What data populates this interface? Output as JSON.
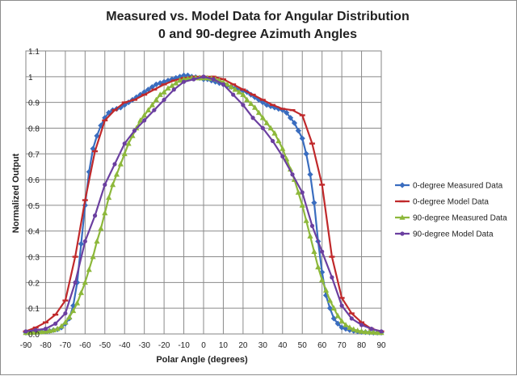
{
  "chart_data": {
    "type": "line",
    "title": "Measured vs. Model Data for Angular Distribution",
    "subtitle": "0 and 90-degree Azimuth Angles",
    "xlabel": "Polar Angle (degrees)",
    "ylabel": "Normalized Output",
    "xlim": [
      -90,
      90
    ],
    "ylim": [
      0,
      1.1
    ],
    "x_ticks": [
      "-90",
      "-80",
      "-70",
      "-60",
      "-50",
      "-40",
      "-30",
      "-20",
      "-10",
      "0",
      "10",
      "20",
      "30",
      "40",
      "50",
      "60",
      "70",
      "80",
      "90"
    ],
    "y_ticks": [
      "0.0",
      "0.1",
      "0.2",
      "0.3",
      "0.4",
      "0.5",
      "0.6",
      "0.7",
      "0.8",
      "0.9",
      "1",
      "1.1"
    ],
    "grid": true,
    "legend_position": "right",
    "series": [
      {
        "name": "0-degree Measured Data",
        "color": "#3A6DBF",
        "marker": "diamond",
        "x": [
          -90,
          -88,
          -86,
          -84,
          -82,
          -80,
          -78,
          -76,
          -74,
          -72,
          -70,
          -68,
          -66,
          -64,
          -62,
          -60,
          -58,
          -56,
          -54,
          -52,
          -50,
          -48,
          -46,
          -44,
          -42,
          -40,
          -38,
          -36,
          -34,
          -32,
          -30,
          -28,
          -26,
          -24,
          -22,
          -20,
          -18,
          -16,
          -14,
          -12,
          -10,
          -8,
          -6,
          -4,
          -2,
          0,
          2,
          4,
          6,
          8,
          10,
          12,
          14,
          16,
          18,
          20,
          22,
          24,
          26,
          28,
          30,
          32,
          34,
          36,
          38,
          40,
          42,
          44,
          46,
          48,
          50,
          52,
          54,
          56,
          58,
          60,
          62,
          64,
          66,
          68,
          70,
          72,
          74,
          76,
          78,
          80,
          82,
          84,
          86,
          88,
          90
        ],
        "y": [
          0.005,
          0.006,
          0.007,
          0.008,
          0.009,
          0.01,
          0.012,
          0.015,
          0.018,
          0.025,
          0.04,
          0.06,
          0.11,
          0.2,
          0.35,
          0.5,
          0.63,
          0.72,
          0.77,
          0.81,
          0.84,
          0.86,
          0.87,
          0.875,
          0.88,
          0.89,
          0.9,
          0.91,
          0.92,
          0.93,
          0.94,
          0.95,
          0.96,
          0.97,
          0.975,
          0.98,
          0.985,
          0.99,
          0.995,
          1.0,
          1.005,
          1.005,
          1.0,
          0.998,
          0.995,
          0.99,
          0.99,
          0.985,
          0.98,
          0.975,
          0.97,
          0.965,
          0.96,
          0.955,
          0.95,
          0.945,
          0.94,
          0.93,
          0.92,
          0.91,
          0.9,
          0.89,
          0.885,
          0.88,
          0.875,
          0.87,
          0.86,
          0.84,
          0.82,
          0.79,
          0.76,
          0.7,
          0.62,
          0.51,
          0.36,
          0.24,
          0.15,
          0.1,
          0.06,
          0.04,
          0.025,
          0.02,
          0.015,
          0.012,
          0.01,
          0.008,
          0.007,
          0.006,
          0.005,
          0.005,
          0.005
        ]
      },
      {
        "name": "0-degree Model Data",
        "color": "#C0292B",
        "marker": "dash",
        "x": [
          -90,
          -85,
          -80,
          -75,
          -70,
          -65,
          -60,
          -55,
          -50,
          -45,
          -40,
          -35,
          -30,
          -25,
          -20,
          -15,
          -10,
          -5,
          0,
          5,
          10,
          15,
          20,
          25,
          30,
          35,
          40,
          45,
          50,
          55,
          60,
          65,
          70,
          75,
          80,
          85,
          90
        ],
        "y": [
          0.01,
          0.025,
          0.045,
          0.075,
          0.13,
          0.3,
          0.52,
          0.71,
          0.83,
          0.87,
          0.9,
          0.91,
          0.93,
          0.95,
          0.97,
          0.985,
          0.995,
          1.0,
          1.0,
          1.0,
          0.99,
          0.97,
          0.95,
          0.93,
          0.91,
          0.89,
          0.875,
          0.87,
          0.85,
          0.74,
          0.58,
          0.3,
          0.14,
          0.08,
          0.045,
          0.02,
          0.01
        ]
      },
      {
        "name": "90-degree Measured Data",
        "color": "#8DB83B",
        "marker": "triangle",
        "x": [
          -90,
          -88,
          -86,
          -84,
          -82,
          -80,
          -78,
          -76,
          -74,
          -72,
          -70,
          -68,
          -66,
          -64,
          -62,
          -60,
          -58,
          -56,
          -54,
          -52,
          -50,
          -48,
          -46,
          -44,
          -42,
          -40,
          -38,
          -36,
          -34,
          -32,
          -30,
          -28,
          -26,
          -24,
          -22,
          -20,
          -18,
          -16,
          -14,
          -12,
          -10,
          -8,
          -6,
          -4,
          -2,
          0,
          2,
          4,
          6,
          8,
          10,
          12,
          14,
          16,
          18,
          20,
          22,
          24,
          26,
          28,
          30,
          32,
          34,
          36,
          38,
          40,
          42,
          44,
          46,
          48,
          50,
          52,
          54,
          56,
          58,
          60,
          62,
          64,
          66,
          68,
          70,
          72,
          74,
          76,
          78,
          80,
          82,
          84,
          86,
          88,
          90
        ],
        "y": [
          0.005,
          0.005,
          0.006,
          0.007,
          0.008,
          0.01,
          0.012,
          0.015,
          0.02,
          0.03,
          0.045,
          0.065,
          0.09,
          0.12,
          0.16,
          0.2,
          0.25,
          0.3,
          0.36,
          0.41,
          0.47,
          0.53,
          0.58,
          0.62,
          0.66,
          0.7,
          0.74,
          0.77,
          0.8,
          0.83,
          0.85,
          0.87,
          0.89,
          0.91,
          0.93,
          0.94,
          0.955,
          0.965,
          0.975,
          0.985,
          0.99,
          0.992,
          0.995,
          0.995,
          0.995,
          0.995,
          0.995,
          0.993,
          0.99,
          0.985,
          0.978,
          0.97,
          0.96,
          0.95,
          0.94,
          0.93,
          0.91,
          0.895,
          0.88,
          0.86,
          0.84,
          0.82,
          0.8,
          0.78,
          0.75,
          0.72,
          0.68,
          0.64,
          0.6,
          0.55,
          0.5,
          0.44,
          0.38,
          0.32,
          0.26,
          0.21,
          0.17,
          0.13,
          0.1,
          0.07,
          0.05,
          0.035,
          0.025,
          0.018,
          0.013,
          0.01,
          0.008,
          0.007,
          0.006,
          0.005,
          0.005
        ]
      },
      {
        "name": "90-degree Model Data",
        "color": "#6B3FA0",
        "marker": "circle",
        "x": [
          -90,
          -85,
          -80,
          -75,
          -70,
          -65,
          -60,
          -55,
          -50,
          -45,
          -40,
          -35,
          -30,
          -25,
          -20,
          -15,
          -10,
          -5,
          0,
          5,
          10,
          15,
          20,
          25,
          30,
          35,
          40,
          45,
          50,
          55,
          60,
          65,
          70,
          75,
          80,
          85,
          90
        ],
        "y": [
          0.01,
          0.015,
          0.02,
          0.04,
          0.08,
          0.2,
          0.36,
          0.46,
          0.58,
          0.66,
          0.74,
          0.79,
          0.83,
          0.87,
          0.91,
          0.95,
          0.98,
          0.99,
          1.0,
          0.99,
          0.97,
          0.93,
          0.89,
          0.84,
          0.8,
          0.75,
          0.69,
          0.62,
          0.55,
          0.42,
          0.32,
          0.22,
          0.11,
          0.06,
          0.035,
          0.02,
          0.01
        ]
      }
    ]
  }
}
